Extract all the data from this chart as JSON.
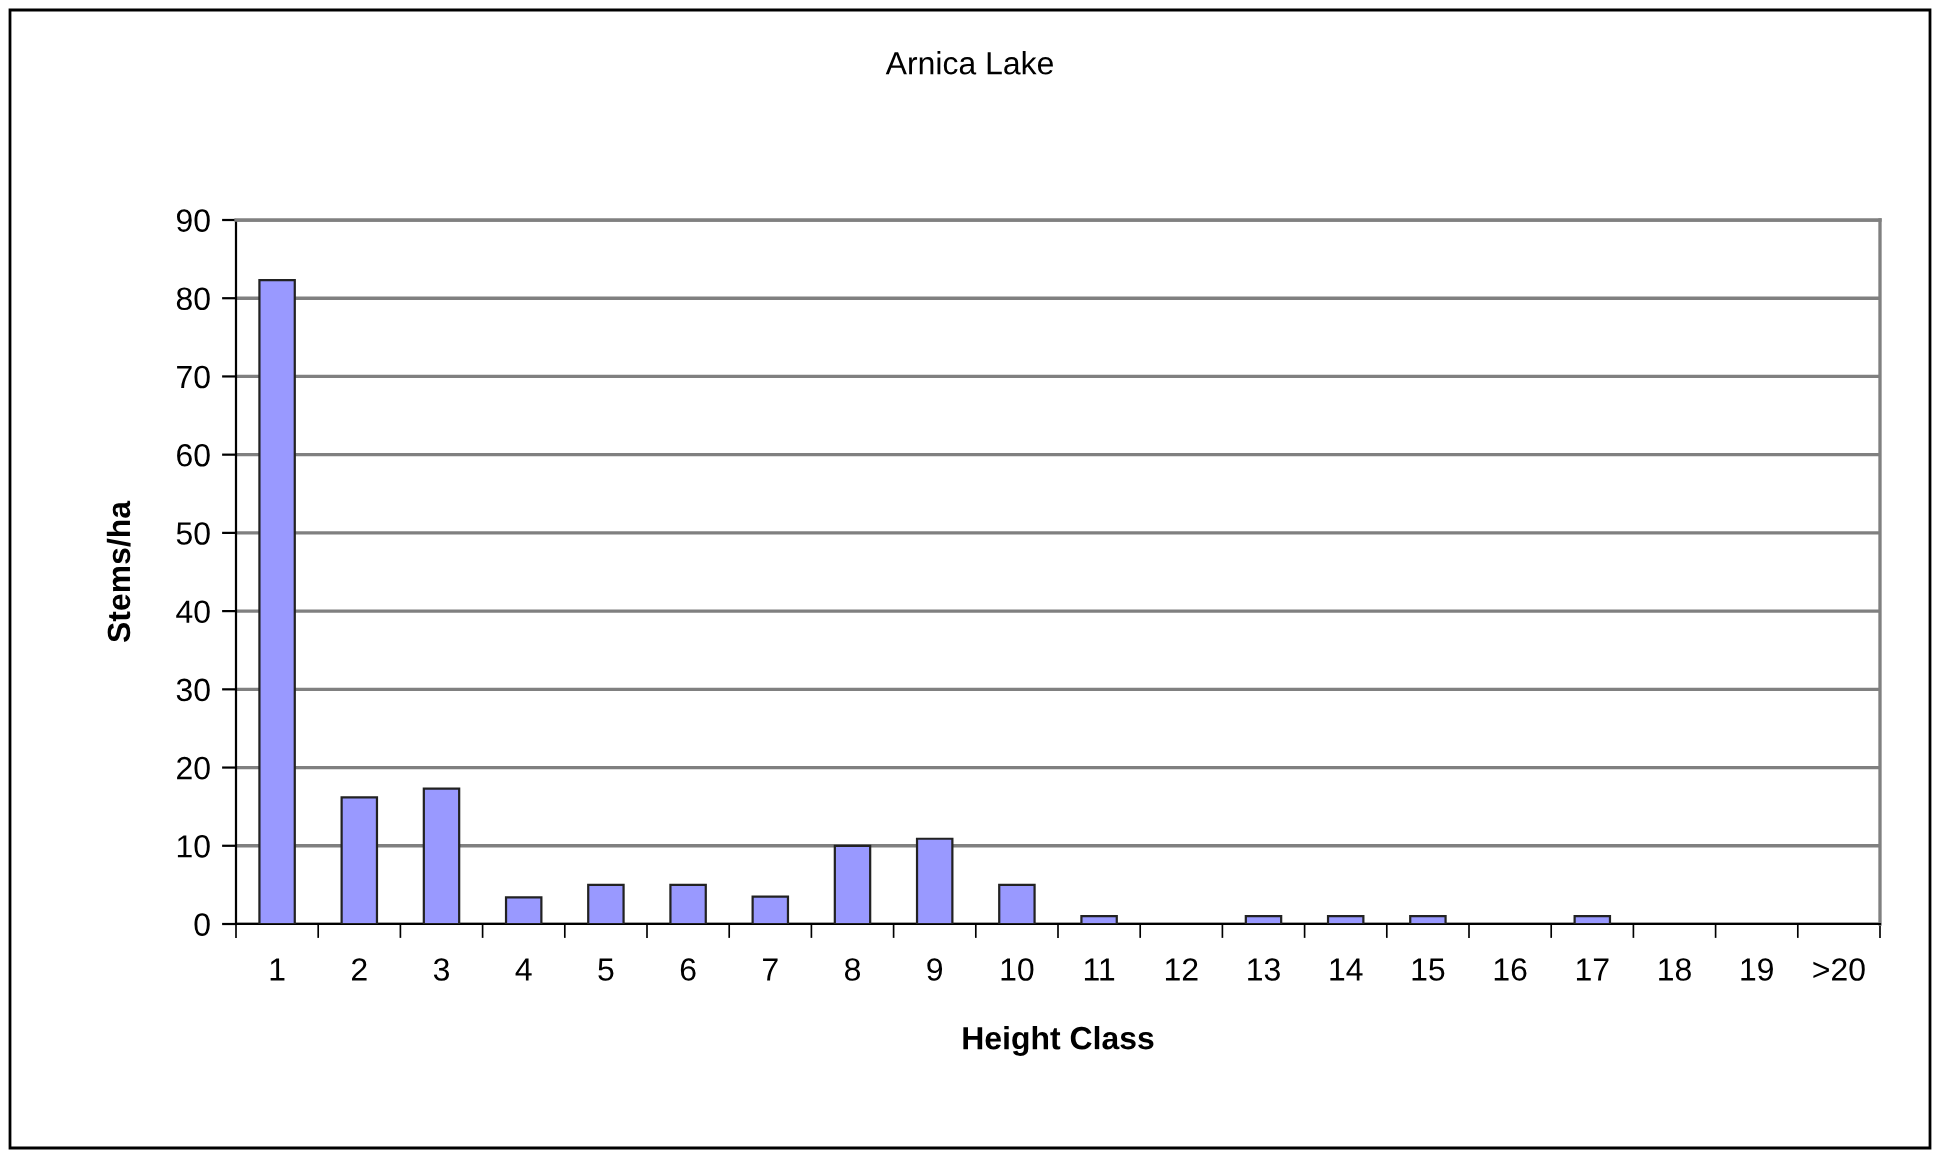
{
  "chart_data": {
    "type": "bar",
    "title": "Arnica Lake",
    "xlabel": "Height Class",
    "ylabel": "Stems/ha",
    "categories": [
      "1",
      "2",
      "3",
      "4",
      "5",
      "6",
      "7",
      "8",
      "9",
      "10",
      "11",
      "12",
      "13",
      "14",
      "15",
      "16",
      "17",
      "18",
      "19",
      ">20"
    ],
    "values": [
      82.3,
      16.2,
      17.3,
      3.4,
      5.0,
      5.0,
      3.5,
      10.0,
      10.9,
      5.0,
      1.0,
      0,
      1.0,
      1.0,
      1.0,
      0,
      1.0,
      0,
      0,
      0
    ],
    "color": "#9999ff",
    "ylim": [
      0,
      90
    ],
    "yticks": [
      0,
      10,
      20,
      30,
      40,
      50,
      60,
      70,
      80,
      90
    ],
    "grid": "y"
  }
}
